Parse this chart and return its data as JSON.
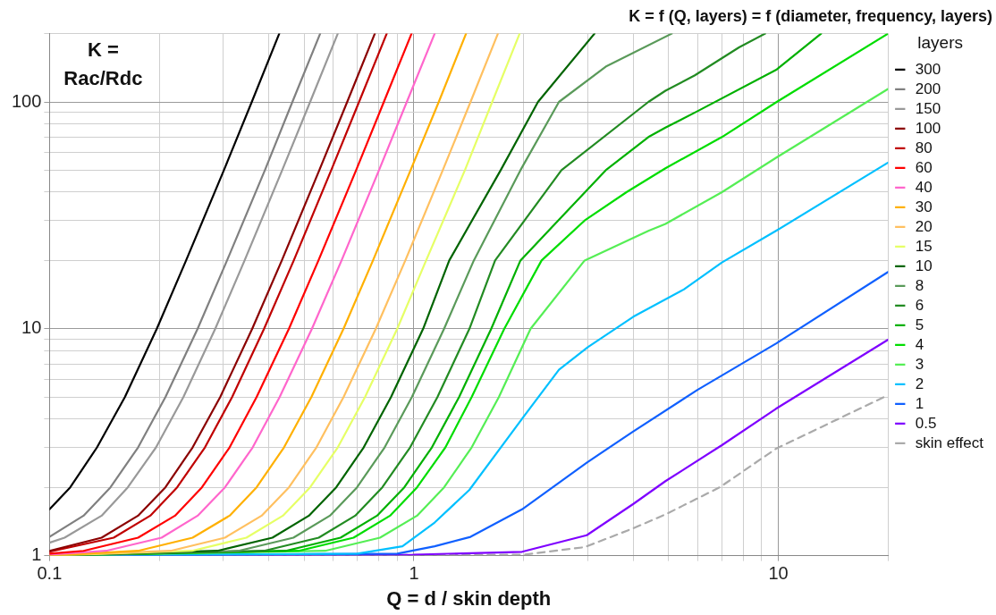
{
  "chart_data": {
    "type": "line",
    "title": "K = f (Q, layers) = f (diameter, frequency, layers)",
    "xlabel": "Q = d / skin depth",
    "legend_title": "layers",
    "annotations": [
      "K = Rac/Rdc"
    ],
    "log": "xy",
    "grid": true,
    "legend": "right",
    "marker": "none",
    "xlim": [
      0.1,
      20
    ],
    "xticks": [
      0.1,
      {
        "value": 0.2,
        "label": null
      },
      {
        "value": 0.3,
        "label": null
      },
      {
        "value": 0.4,
        "label": null
      },
      {
        "value": 0.5,
        "label": null
      },
      {
        "value": 0.6,
        "label": null
      },
      {
        "value": 0.7,
        "label": null
      },
      {
        "value": 0.8,
        "label": null
      },
      {
        "value": 0.9,
        "label": null
      },
      1,
      {
        "value": 2,
        "label": null
      },
      {
        "value": 3,
        "label": null
      },
      {
        "value": 4,
        "label": null
      },
      {
        "value": 5,
        "label": null
      },
      {
        "value": 6,
        "label": null
      },
      {
        "value": 7,
        "label": null
      },
      {
        "value": 8,
        "label": null
      },
      {
        "value": 9,
        "label": null
      },
      10,
      {
        "value": 20,
        "label": null
      }
    ],
    "ylim": [
      1,
      200
    ],
    "yticks": [
      1,
      {
        "value": 2,
        "label": null
      },
      {
        "value": 3,
        "label": null
      },
      {
        "value": 4,
        "label": null
      },
      {
        "value": 5,
        "label": null
      },
      {
        "value": 6,
        "label": null
      },
      {
        "value": 7,
        "label": null
      },
      {
        "value": 8,
        "label": null
      },
      {
        "value": 9,
        "label": null
      },
      10,
      {
        "value": 20,
        "label": null
      },
      {
        "value": 30,
        "label": null
      },
      {
        "value": 40,
        "label": null
      },
      {
        "value": 50,
        "label": null
      },
      {
        "value": 60,
        "label": null
      },
      {
        "value": 70,
        "label": null
      },
      {
        "value": 80,
        "label": null
      },
      {
        "value": 90,
        "label": null
      },
      100,
      {
        "value": 200,
        "label": null
      }
    ],
    "series": [
      {
        "name": "300",
        "color": "#000000",
        "x": [
          0.1,
          0.114,
          0.135,
          0.161,
          0.197,
          0.237,
          0.301,
          0.359,
          0.427
        ],
        "values": [
          1.6,
          2,
          3,
          5,
          10,
          20,
          50,
          100,
          200
        ]
      },
      {
        "name": "200",
        "color": "#808080",
        "x": [
          0.1,
          0.124,
          0.147,
          0.175,
          0.208,
          0.255,
          0.307,
          0.39,
          0.464,
          0.553
        ],
        "values": [
          1.21,
          1.5,
          2,
          3,
          5,
          10,
          20,
          50,
          100,
          200
        ]
      },
      {
        "name": "150",
        "color": "#999999",
        "x": [
          0.1,
          0.11,
          0.139,
          0.164,
          0.196,
          0.233,
          0.285,
          0.343,
          0.435,
          0.519,
          0.618
        ],
        "values": [
          1.14,
          1.2,
          1.5,
          2,
          3,
          5,
          10,
          20,
          50,
          100,
          200
        ]
      },
      {
        "name": "100",
        "color": "#8b0000",
        "x": [
          0.1,
          0.139,
          0.175,
          0.208,
          0.247,
          0.294,
          0.36,
          0.434,
          0.55,
          0.656,
          0.781
        ],
        "values": [
          1.05,
          1.2,
          1.5,
          2,
          3,
          5,
          10,
          20,
          50,
          100,
          200
        ]
      },
      {
        "name": "80",
        "color": "#c00000",
        "x": [
          0.1,
          0.15,
          0.189,
          0.224,
          0.267,
          0.317,
          0.388,
          0.468,
          0.593,
          0.707,
          0.842
        ],
        "values": [
          1.04,
          1.2,
          1.5,
          2,
          3,
          5,
          10,
          20,
          50,
          100,
          200
        ]
      },
      {
        "name": "60",
        "color": "#ff0000",
        "x": [
          0.1,
          0.124,
          0.175,
          0.221,
          0.262,
          0.312,
          0.37,
          0.454,
          0.547,
          0.694,
          0.827,
          0.985
        ],
        "values": [
          1.02,
          1.05,
          1.2,
          1.5,
          2,
          3,
          5,
          10,
          20,
          50,
          100,
          200
        ]
      },
      {
        "name": "40",
        "color": "#ff66cc",
        "x": [
          0.1,
          0.143,
          0.203,
          0.255,
          0.303,
          0.361,
          0.428,
          0.525,
          0.633,
          0.802,
          0.956,
          1.14
        ],
        "values": [
          1.01,
          1.05,
          1.2,
          1.5,
          2,
          3,
          5,
          10,
          20,
          50,
          100,
          200
        ]
      },
      {
        "name": "30",
        "color": "#ffb000",
        "x": [
          0.1,
          0.175,
          0.247,
          0.312,
          0.37,
          0.44,
          0.523,
          0.641,
          0.772,
          0.979,
          1.17,
          1.39
        ],
        "values": [
          1,
          1.05,
          1.2,
          1.5,
          2,
          3,
          5,
          10,
          20,
          50,
          100,
          200
        ]
      },
      {
        "name": "20",
        "color": "#ffc060",
        "x": [
          0.1,
          0.215,
          0.303,
          0.382,
          0.454,
          0.54,
          0.641,
          0.786,
          0.947,
          1.2,
          1.43,
          1.7
        ],
        "values": [
          1,
          1.05,
          1.2,
          1.5,
          2,
          3,
          5,
          10,
          20,
          50,
          100,
          200
        ]
      },
      {
        "name": "15",
        "color": "#e6ff66",
        "x": [
          0.1,
          0.246,
          0.347,
          0.437,
          0.519,
          0.618,
          0.734,
          0.9,
          1.08,
          1.38,
          1.64,
          1.95
        ],
        "values": [
          1,
          1.05,
          1.2,
          1.5,
          2,
          3,
          5,
          10,
          20,
          50,
          100,
          200
        ]
      },
      {
        "name": "10",
        "color": "#006400",
        "x": [
          0.1,
          0.289,
          0.409,
          0.515,
          0.612,
          0.728,
          0.865,
          1.06,
          1.25,
          1.73,
          2.19,
          3.13
        ],
        "values": [
          1,
          1.05,
          1.2,
          1.5,
          2,
          3,
          5,
          10,
          20,
          50,
          100,
          200
        ]
      },
      {
        "name": "8",
        "color": "#5a9a5a",
        "x": [
          0.1,
          0.33,
          0.467,
          0.588,
          0.698,
          0.831,
          0.987,
          1.21,
          1.46,
          1.96,
          2.5,
          3.36,
          5.1
        ],
        "values": [
          1,
          1.05,
          1.2,
          1.5,
          2,
          3,
          5,
          10,
          20,
          50,
          100,
          143,
          200
        ]
      },
      {
        "name": "6",
        "color": "#228b22",
        "x": [
          0.1,
          0.388,
          0.548,
          0.69,
          0.819,
          0.976,
          1.16,
          1.42,
          1.67,
          2.54,
          4.4,
          4.9,
          5.9,
          7.8,
          9.2
        ],
        "values": [
          1,
          1.05,
          1.2,
          1.5,
          2,
          3,
          5,
          10,
          20,
          50,
          100,
          112,
          131,
          174,
          200
        ]
      },
      {
        "name": "5",
        "color": "#00b000",
        "x": [
          0.1,
          0.445,
          0.629,
          0.792,
          0.941,
          1.12,
          1.33,
          1.63,
          1.96,
          3.36,
          4.4,
          4.9,
          6,
          9.9,
          13.1
        ],
        "values": [
          1,
          1.05,
          1.2,
          1.5,
          2,
          3,
          5,
          10,
          20,
          50,
          70,
          77,
          91,
          139,
          200
        ]
      },
      {
        "name": "4",
        "color": "#00dd00",
        "x": [
          0.1,
          0.483,
          0.683,
          0.86,
          1.02,
          1.22,
          1.44,
          1.77,
          2.24,
          2.94,
          3.83,
          4.9,
          7,
          9.9,
          20
        ],
        "values": [
          1,
          1.05,
          1.2,
          1.5,
          2,
          3,
          5,
          10,
          20,
          30,
          40,
          51,
          70,
          100,
          200
        ]
      },
      {
        "name": "3",
        "color": "#55ee55",
        "x": [
          0.1,
          0.571,
          0.807,
          1.02,
          1.21,
          1.44,
          1.71,
          2.09,
          2.94,
          4.4,
          4.9,
          7,
          9.9,
          20
        ],
        "values": [
          1,
          1.05,
          1.2,
          1.5,
          2,
          3,
          5,
          10,
          20,
          27,
          29,
          40,
          57,
          114
        ]
      },
      {
        "name": "2",
        "color": "#00c0ff",
        "x": [
          0.1,
          0.7,
          0.93,
          1.14,
          1.42,
          2,
          2.5,
          3,
          4,
          5.5,
          7,
          9.85,
          20
        ],
        "values": [
          1,
          1.02,
          1.1,
          1.4,
          1.95,
          4.1,
          6.6,
          8.3,
          11.3,
          14.9,
          19.6,
          27,
          54
        ]
      },
      {
        "name": "1",
        "color": "#1060ff",
        "x": [
          0.1,
          0.9,
          1.14,
          1.43,
          1.98,
          2.98,
          4,
          6,
          9.85,
          20
        ],
        "values": [
          1,
          1.02,
          1.1,
          1.21,
          1.6,
          2.57,
          3.53,
          5.38,
          8.6,
          17.8
        ]
      },
      {
        "name": "0.5",
        "color": "#7f00ff",
        "x": [
          0.1,
          1,
          1.98,
          2.98,
          4,
          4.9,
          7,
          9.85,
          20
        ],
        "values": [
          1,
          1.01,
          1.04,
          1.23,
          1.69,
          2.13,
          3.07,
          4.44,
          8.95
        ]
      },
      {
        "name": "skin effect",
        "color": "#aaaaaa",
        "line_style": "dashed",
        "x": [
          0.1,
          2,
          2.94,
          4,
          4.9,
          6.9,
          9.85,
          20
        ],
        "values": [
          1,
          1.01,
          1.09,
          1.32,
          1.52,
          2,
          2.96,
          5.1
        ]
      }
    ]
  }
}
